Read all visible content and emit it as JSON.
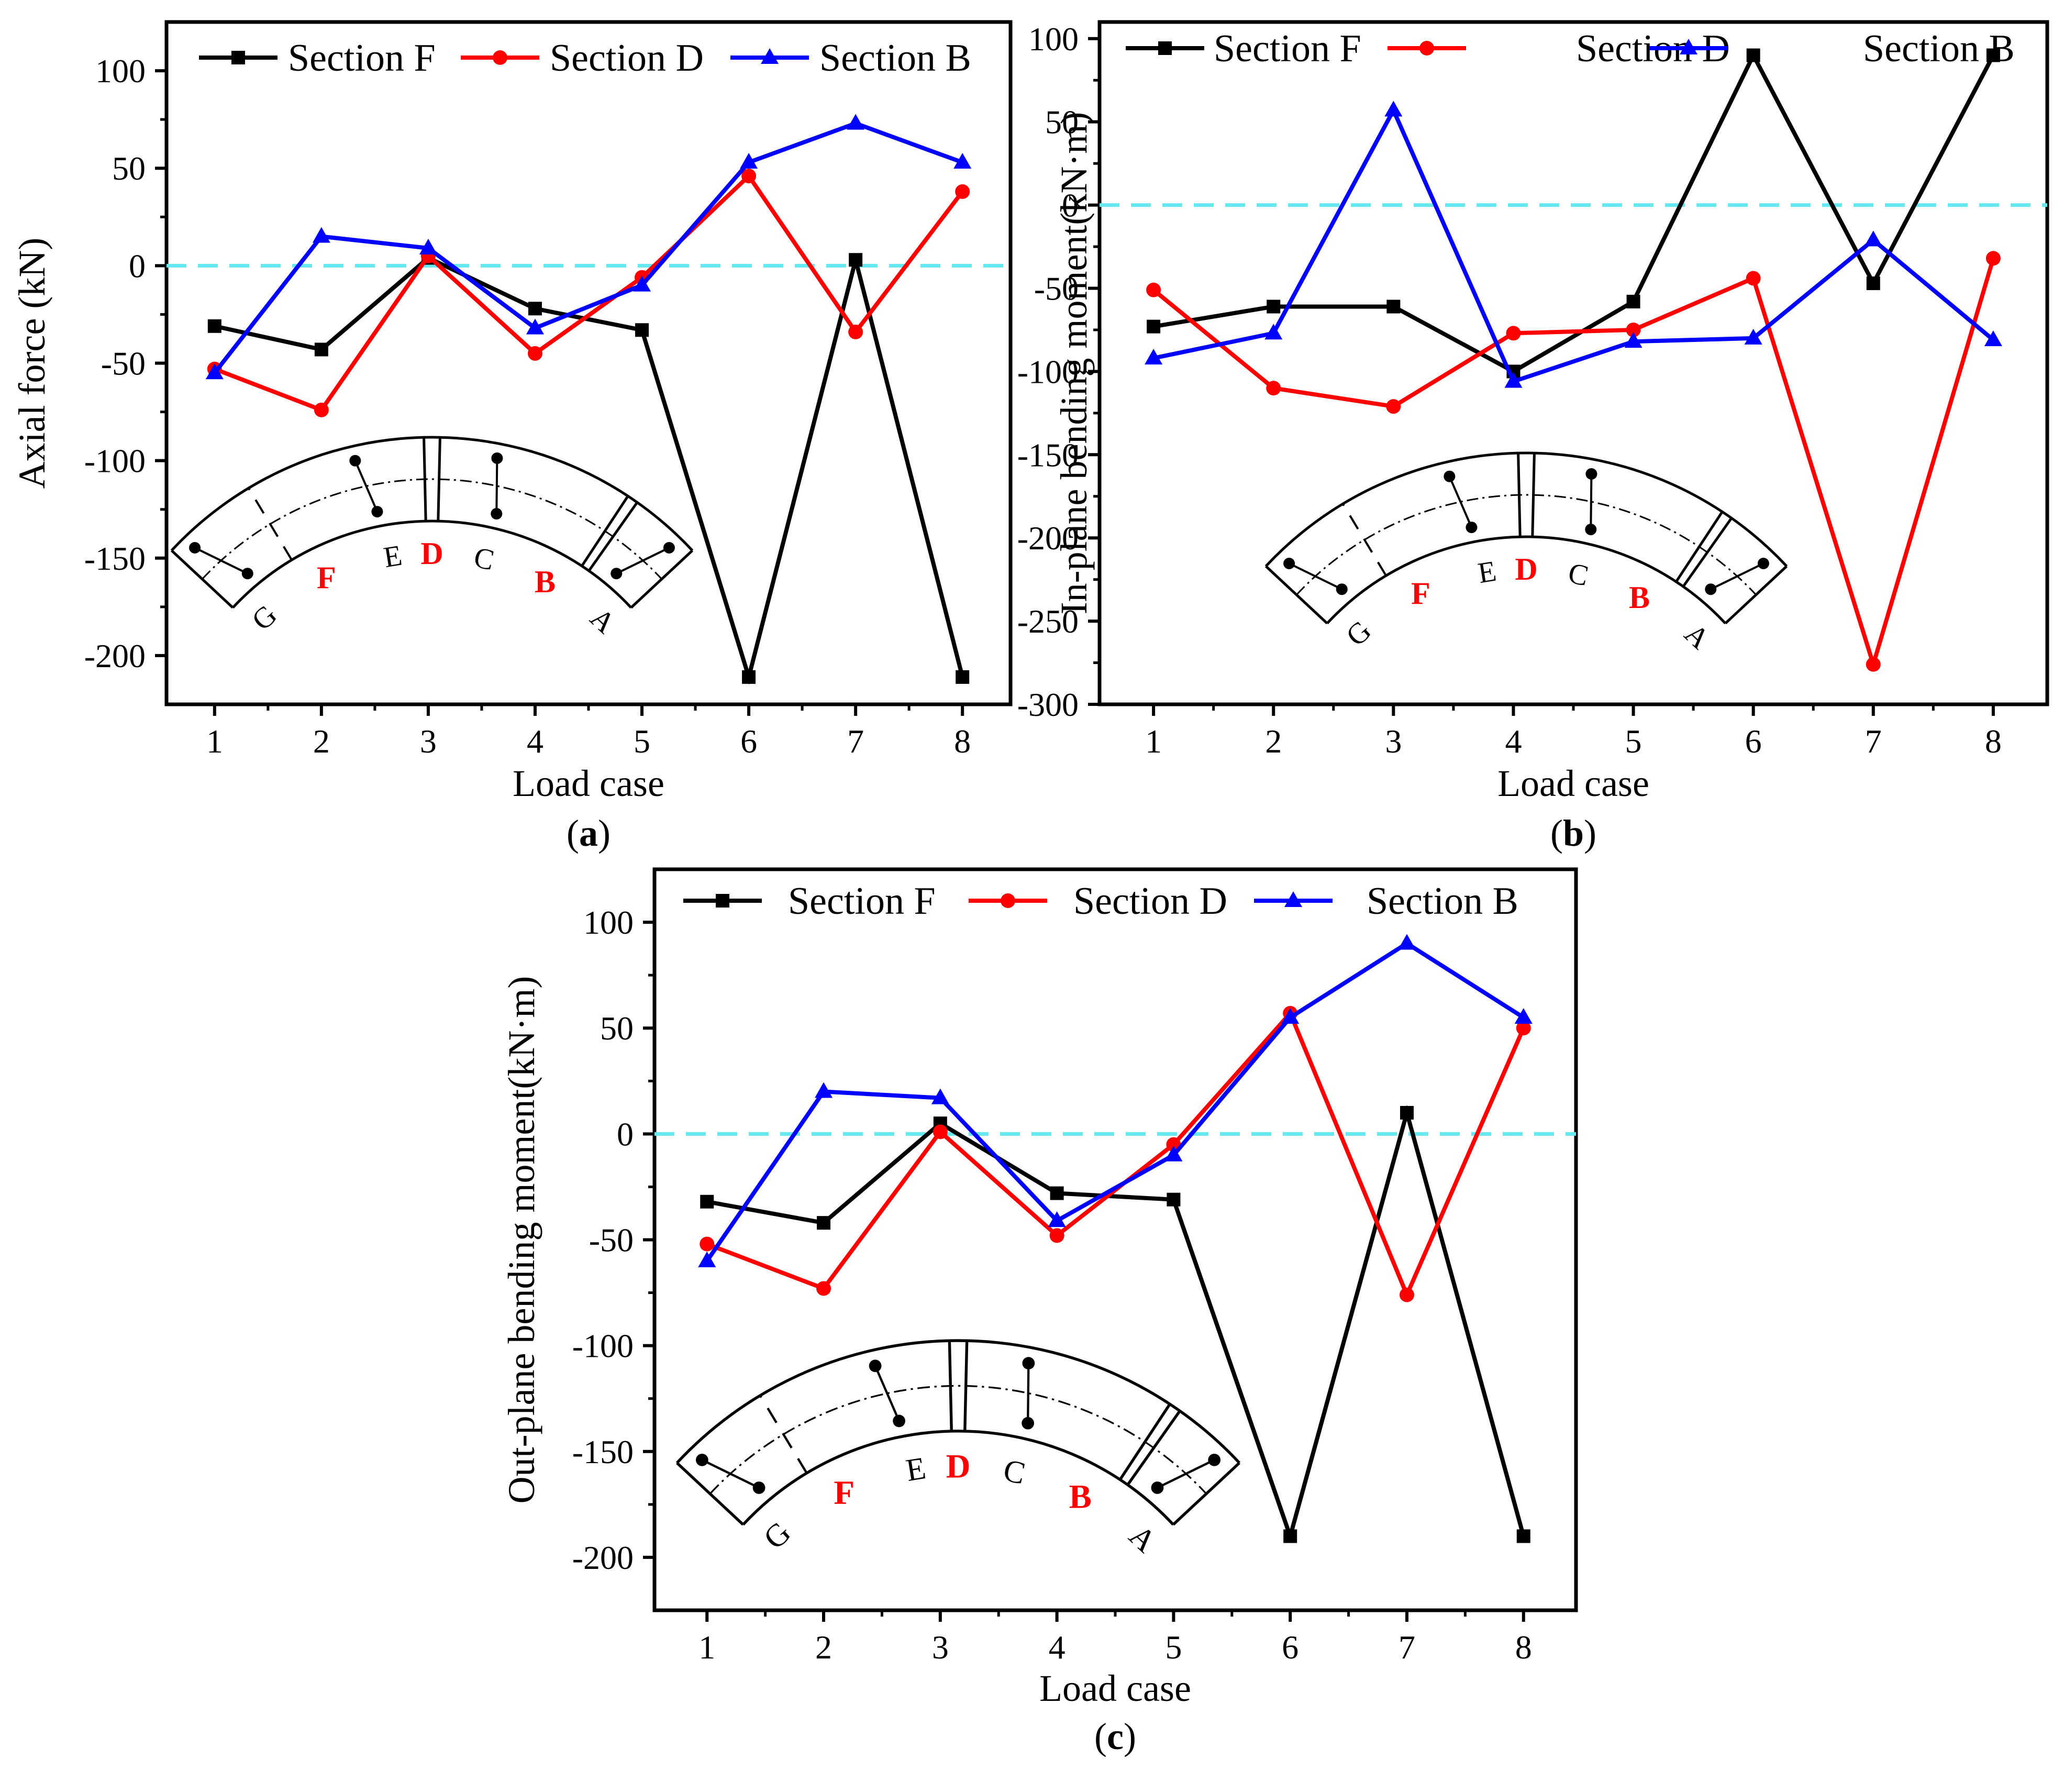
{
  "styles": {
    "series_colors": [
      "#000000",
      "#ff0000",
      "#0000ff"
    ],
    "series_markers": [
      "square",
      "circle",
      "triangle"
    ],
    "zero_line_color": "#66e8f0",
    "inset_highlight_color": "#ff0000"
  },
  "inset": {
    "labels_black": [
      "G",
      "E",
      "C",
      "A"
    ],
    "labels_red": [
      "F",
      "D",
      "B"
    ]
  },
  "chart_data": [
    {
      "panel": "a",
      "panel_label": "a",
      "type": "line",
      "xlabel": "Load case",
      "ylabel": "Axial force (kN)",
      "x": [
        1,
        2,
        3,
        4,
        5,
        6,
        7,
        8
      ],
      "xticks": [
        "1",
        "2",
        "3",
        "4",
        "5",
        "6",
        "7",
        "8"
      ],
      "ylim": [
        -225,
        125
      ],
      "yticks": [
        100,
        50,
        0,
        -50,
        -100,
        -150,
        -200
      ],
      "zero_line": true,
      "legend": "top",
      "series": [
        {
          "name": "Section F",
          "values": [
            -31,
            -43,
            4,
            -22,
            -33,
            -211,
            3,
            -211
          ]
        },
        {
          "name": "Section D",
          "values": [
            -53,
            -74,
            5,
            -45,
            -6,
            46,
            -34,
            38
          ]
        },
        {
          "name": "Section B",
          "values": [
            -55,
            15,
            9,
            -32,
            -10,
            53,
            73,
            53
          ]
        }
      ]
    },
    {
      "panel": "b",
      "panel_label": "b",
      "type": "line",
      "xlabel": "Load case",
      "ylabel": "In-plane bending moment(kN·m)",
      "x": [
        1,
        2,
        3,
        4,
        5,
        6,
        7,
        8
      ],
      "xticks": [
        "1",
        "2",
        "3",
        "4",
        "5",
        "6",
        "7",
        "8"
      ],
      "ylim": [
        -300,
        110
      ],
      "yticks": [
        100,
        50,
        0,
        -50,
        -100,
        -150,
        -200,
        -250,
        -300
      ],
      "zero_line": true,
      "legend": "top",
      "series": [
        {
          "name": "Section F",
          "values": [
            -73,
            -61,
            -61,
            -100,
            -58,
            90,
            -47,
            90
          ]
        },
        {
          "name": "Section D",
          "values": [
            -51,
            -110,
            -121,
            -77,
            -75,
            -44,
            -276,
            -32
          ]
        },
        {
          "name": "Section B",
          "values": [
            -92,
            -77,
            57,
            -106,
            -82,
            -80,
            -21,
            -81
          ]
        }
      ]
    },
    {
      "panel": "c",
      "panel_label": "c",
      "type": "line",
      "xlabel": "Load case",
      "ylabel": "Out-plane bending moment(kN·m)",
      "x": [
        1,
        2,
        3,
        4,
        5,
        6,
        7,
        8
      ],
      "xticks": [
        "1",
        "2",
        "3",
        "4",
        "5",
        "6",
        "7",
        "8"
      ],
      "ylim": [
        -225,
        125
      ],
      "yticks": [
        100,
        50,
        0,
        -50,
        -100,
        -150,
        -200
      ],
      "zero_line": true,
      "legend": "top",
      "series": [
        {
          "name": "Section F",
          "values": [
            -32,
            -42,
            5,
            -28,
            -31,
            -190,
            10,
            -190
          ]
        },
        {
          "name": "Section D",
          "values": [
            -52,
            -73,
            1,
            -48,
            -5,
            57,
            -76,
            50
          ]
        },
        {
          "name": "Section B",
          "values": [
            -60,
            20,
            17,
            -41,
            -10,
            55,
            90,
            55
          ]
        }
      ]
    }
  ]
}
